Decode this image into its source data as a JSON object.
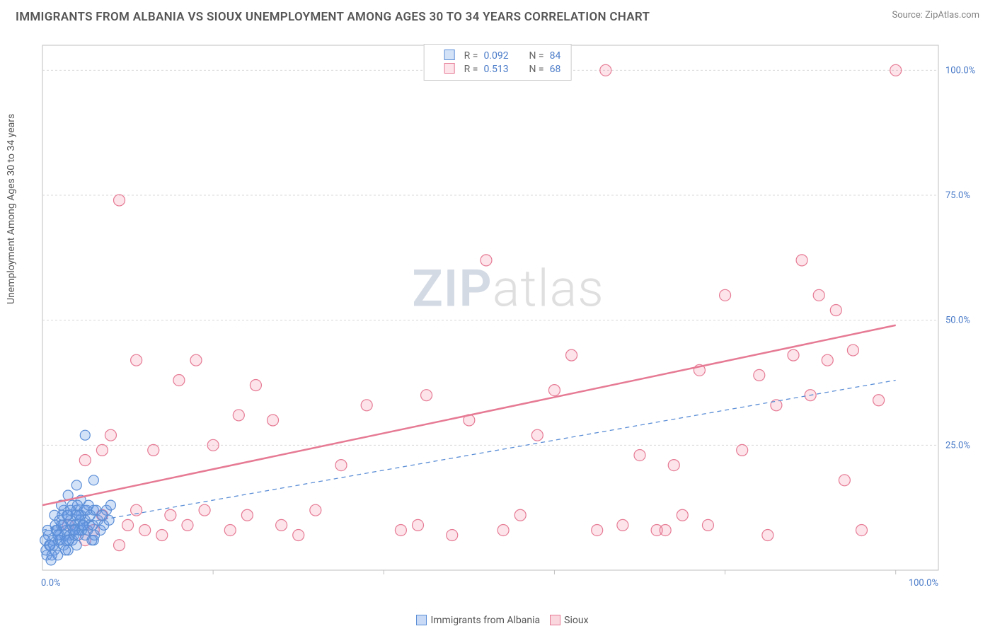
{
  "title": "IMMIGRANTS FROM ALBANIA VS SIOUX UNEMPLOYMENT AMONG AGES 30 TO 34 YEARS CORRELATION CHART",
  "source_label": "Source: ZipAtlas.com",
  "ylabel": "Unemployment Among Ages 30 to 34 years",
  "watermark_a": "ZIP",
  "watermark_b": "atlas",
  "chart": {
    "type": "scatter",
    "xlim": [
      0,
      105
    ],
    "ylim": [
      0,
      105
    ],
    "xticks": [
      20,
      40,
      60,
      80,
      100
    ],
    "yticks": [
      25,
      50,
      75,
      100
    ],
    "ytick_labels": [
      "25.0%",
      "50.0%",
      "75.0%",
      "100.0%"
    ],
    "x_origin_label": "0.0%",
    "x_max_label": "100.0%",
    "grid_color": "#d8d8d8",
    "background_color": "#ffffff",
    "axis_line_color": "#bfbfbf",
    "tick_label_color": "#4a7bc8",
    "tick_fontsize": 13,
    "series": [
      {
        "name": "Immigrants from Albania",
        "color_fill": "rgba(100,150,230,0.28)",
        "color_stroke": "#5b8ed6",
        "marker_radius": 7,
        "r": 0.092,
        "n": 84,
        "trend": {
          "y0": 8,
          "y100": 38,
          "dash": "6,5",
          "width": 1.3
        },
        "points": [
          [
            0.5,
            3
          ],
          [
            0.8,
            5
          ],
          [
            1,
            2
          ],
          [
            1.2,
            6
          ],
          [
            1.4,
            4
          ],
          [
            1.6,
            8
          ],
          [
            1.8,
            3
          ],
          [
            2,
            7
          ],
          [
            2,
            10
          ],
          [
            2.2,
            9
          ],
          [
            2.5,
            5
          ],
          [
            2.5,
            12
          ],
          [
            2.8,
            8
          ],
          [
            3,
            4
          ],
          [
            3,
            11
          ],
          [
            3,
            15
          ],
          [
            3.2,
            7
          ],
          [
            3.5,
            6
          ],
          [
            3.5,
            13
          ],
          [
            3.8,
            9
          ],
          [
            4,
            5
          ],
          [
            4,
            12
          ],
          [
            4,
            17
          ],
          [
            4.3,
            8
          ],
          [
            4.5,
            11
          ],
          [
            4.5,
            14
          ],
          [
            5,
            7
          ],
          [
            5,
            10
          ],
          [
            5,
            27
          ],
          [
            5.5,
            9
          ],
          [
            6,
            6
          ],
          [
            6,
            12
          ],
          [
            6,
            18
          ],
          [
            0.4,
            4
          ],
          [
            0.7,
            7
          ],
          [
            1.1,
            3
          ],
          [
            1.5,
            9
          ],
          [
            1.9,
            6
          ],
          [
            2.3,
            11
          ],
          [
            2.7,
            4
          ],
          [
            3.3,
            10
          ],
          [
            3.7,
            7
          ],
          [
            4.1,
            13
          ],
          [
            4.6,
            8
          ],
          [
            5.2,
            12
          ],
          [
            5.8,
            6
          ],
          [
            1.3,
            5
          ],
          [
            1.7,
            8
          ],
          [
            2.1,
            6
          ],
          [
            2.4,
            9
          ],
          [
            2.6,
            7
          ],
          [
            2.9,
            11
          ],
          [
            3.1,
            6
          ],
          [
            3.4,
            9
          ],
          [
            3.6,
            8
          ],
          [
            3.9,
            11
          ],
          [
            4.2,
            7
          ],
          [
            4.4,
            10
          ],
          [
            4.7,
            9
          ],
          [
            4.9,
            12
          ],
          [
            5.3,
            8
          ],
          [
            5.6,
            11
          ],
          [
            5.9,
            9
          ],
          [
            6.3,
            12
          ],
          [
            0.3,
            6
          ],
          [
            0.6,
            8
          ],
          [
            0.9,
            5
          ],
          [
            1.4,
            11
          ],
          [
            1.8,
            7
          ],
          [
            2.2,
            13
          ],
          [
            2.8,
            6
          ],
          [
            3.3,
            12
          ],
          [
            3.8,
            8
          ],
          [
            4.3,
            11
          ],
          [
            4.8,
            9
          ],
          [
            5.4,
            13
          ],
          [
            6.1,
            7
          ],
          [
            6.5,
            10
          ],
          [
            6.8,
            8
          ],
          [
            7,
            11
          ],
          [
            7.2,
            9
          ],
          [
            7.5,
            12
          ],
          [
            7.8,
            10
          ],
          [
            8,
            13
          ]
        ]
      },
      {
        "name": "Sioux",
        "color_fill": "rgba(240,120,150,0.20)",
        "color_stroke": "#e67a94",
        "marker_radius": 8,
        "r": 0.513,
        "n": 68,
        "trend": {
          "y0": 13,
          "y100": 49,
          "dash": "none",
          "width": 2.5
        },
        "points": [
          [
            3,
            9
          ],
          [
            5,
            6
          ],
          [
            5,
            22
          ],
          [
            6,
            8
          ],
          [
            7,
            11
          ],
          [
            7,
            24
          ],
          [
            8,
            27
          ],
          [
            9,
            5
          ],
          [
            9,
            74
          ],
          [
            10,
            9
          ],
          [
            11,
            12
          ],
          [
            11,
            42
          ],
          [
            12,
            8
          ],
          [
            13,
            24
          ],
          [
            14,
            7
          ],
          [
            15,
            11
          ],
          [
            16,
            38
          ],
          [
            17,
            9
          ],
          [
            18,
            42
          ],
          [
            19,
            12
          ],
          [
            20,
            25
          ],
          [
            22,
            8
          ],
          [
            23,
            31
          ],
          [
            24,
            11
          ],
          [
            25,
            37
          ],
          [
            27,
            30
          ],
          [
            28,
            9
          ],
          [
            30,
            7
          ],
          [
            32,
            12
          ],
          [
            35,
            21
          ],
          [
            38,
            33
          ],
          [
            42,
            8
          ],
          [
            44,
            9
          ],
          [
            45,
            35
          ],
          [
            48,
            7
          ],
          [
            50,
            30
          ],
          [
            52,
            62
          ],
          [
            54,
            8
          ],
          [
            56,
            11
          ],
          [
            58,
            27
          ],
          [
            60,
            36
          ],
          [
            62,
            43
          ],
          [
            65,
            8
          ],
          [
            66,
            100
          ],
          [
            68,
            9
          ],
          [
            70,
            23
          ],
          [
            72,
            8
          ],
          [
            74,
            21
          ],
          [
            75,
            11
          ],
          [
            77,
            40
          ],
          [
            78,
            9
          ],
          [
            80,
            55
          ],
          [
            82,
            24
          ],
          [
            84,
            39
          ],
          [
            85,
            7
          ],
          [
            86,
            33
          ],
          [
            88,
            43
          ],
          [
            89,
            62
          ],
          [
            90,
            35
          ],
          [
            91,
            55
          ],
          [
            92,
            42
          ],
          [
            93,
            52
          ],
          [
            94,
            18
          ],
          [
            95,
            44
          ],
          [
            96,
            8
          ],
          [
            98,
            34
          ],
          [
            100,
            100
          ],
          [
            73,
            8
          ]
        ]
      }
    ]
  },
  "bottom_legend": [
    {
      "label": "Immigrants from Albania",
      "fill": "rgba(100,150,230,0.35)",
      "stroke": "#5b8ed6"
    },
    {
      "label": "Sioux",
      "fill": "rgba(240,120,150,0.30)",
      "stroke": "#e67a94"
    }
  ]
}
